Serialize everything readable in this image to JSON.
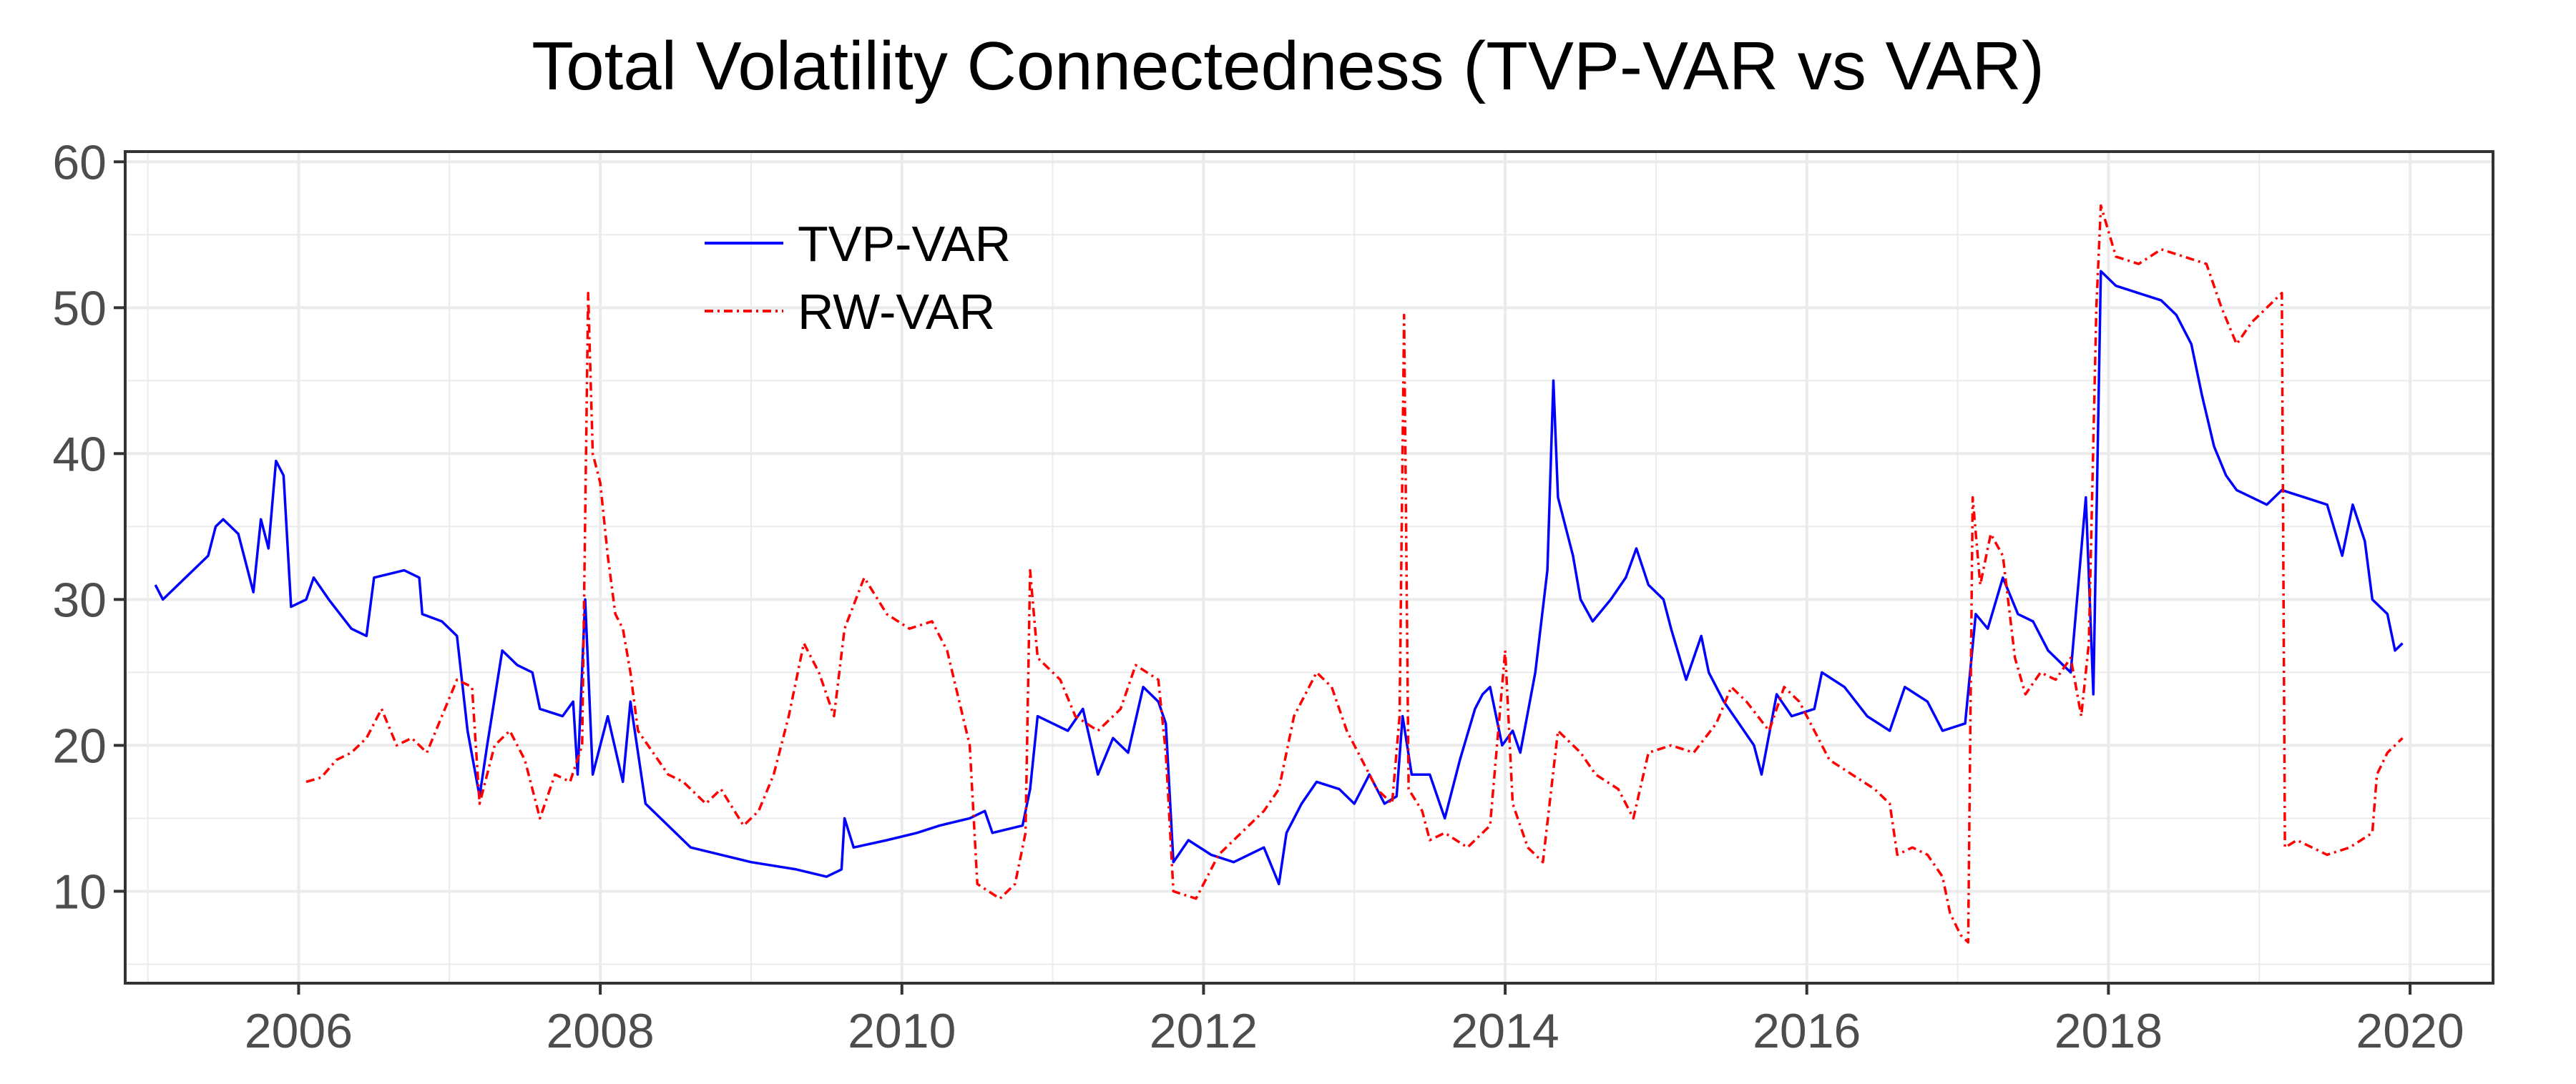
{
  "chart_data": {
    "type": "line",
    "title": "Total Volatility Connectedness (TVP-VAR vs VAR)",
    "xlabel": "",
    "ylabel": "",
    "xlim": [
      2004.85,
      2020.55
    ],
    "ylim": [
      3.7,
      60.7
    ],
    "x_ticks": [
      2006,
      2008,
      2010,
      2012,
      2014,
      2016,
      2018,
      2020
    ],
    "x_tick_labels": [
      "2006",
      "2008",
      "2010",
      "2012",
      "2014",
      "2016",
      "2018",
      "2020"
    ],
    "y_ticks": [
      10,
      20,
      30,
      40,
      50,
      60
    ],
    "y_tick_labels": [
      "10",
      "20",
      "30",
      "40",
      "50",
      "60"
    ],
    "grid": true,
    "legend_position": "top-left",
    "series": [
      {
        "name": "TVP-VAR",
        "color": "#0000ff",
        "style": "solid",
        "points": [
          [
            2005.05,
            31.0
          ],
          [
            2005.1,
            30.0
          ],
          [
            2005.2,
            31.0
          ],
          [
            2005.3,
            32.0
          ],
          [
            2005.4,
            33.0
          ],
          [
            2005.45,
            35.0
          ],
          [
            2005.5,
            35.5
          ],
          [
            2005.6,
            34.5
          ],
          [
            2005.65,
            32.5
          ],
          [
            2005.7,
            30.5
          ],
          [
            2005.75,
            35.5
          ],
          [
            2005.8,
            33.5
          ],
          [
            2005.85,
            39.5
          ],
          [
            2005.9,
            38.5
          ],
          [
            2005.95,
            29.5
          ],
          [
            2006.05,
            30.0
          ],
          [
            2006.1,
            31.5
          ],
          [
            2006.2,
            30.0
          ],
          [
            2006.35,
            28.0
          ],
          [
            2006.45,
            27.5
          ],
          [
            2006.5,
            31.5
          ],
          [
            2006.7,
            32.0
          ],
          [
            2006.8,
            31.5
          ],
          [
            2006.82,
            29.0
          ],
          [
            2006.95,
            28.5
          ],
          [
            2007.05,
            27.5
          ],
          [
            2007.12,
            21.0
          ],
          [
            2007.2,
            16.5
          ],
          [
            2007.25,
            20.0
          ],
          [
            2007.35,
            26.5
          ],
          [
            2007.45,
            25.5
          ],
          [
            2007.55,
            25.0
          ],
          [
            2007.6,
            22.5
          ],
          [
            2007.75,
            22.0
          ],
          [
            2007.82,
            23.0
          ],
          [
            2007.85,
            18.0
          ],
          [
            2007.9,
            30.0
          ],
          [
            2007.95,
            18.0
          ],
          [
            2008.05,
            22.0
          ],
          [
            2008.15,
            17.5
          ],
          [
            2008.2,
            23.0
          ],
          [
            2008.3,
            16.0
          ],
          [
            2008.45,
            14.5
          ],
          [
            2008.6,
            13.0
          ],
          [
            2008.8,
            12.5
          ],
          [
            2009.0,
            12.0
          ],
          [
            2009.3,
            11.5
          ],
          [
            2009.5,
            11.0
          ],
          [
            2009.6,
            11.5
          ],
          [
            2009.62,
            15.0
          ],
          [
            2009.68,
            13.0
          ],
          [
            2009.9,
            13.5
          ],
          [
            2010.1,
            14.0
          ],
          [
            2010.25,
            14.5
          ],
          [
            2010.45,
            15.0
          ],
          [
            2010.55,
            15.5
          ],
          [
            2010.6,
            14.0
          ],
          [
            2010.8,
            14.5
          ],
          [
            2010.85,
            17.0
          ],
          [
            2010.9,
            22.0
          ],
          [
            2011.1,
            21.0
          ],
          [
            2011.2,
            22.5
          ],
          [
            2011.3,
            18.0
          ],
          [
            2011.4,
            20.5
          ],
          [
            2011.5,
            19.5
          ],
          [
            2011.6,
            24.0
          ],
          [
            2011.7,
            23.0
          ],
          [
            2011.75,
            21.5
          ],
          [
            2011.8,
            12.0
          ],
          [
            2011.9,
            13.5
          ],
          [
            2012.05,
            12.5
          ],
          [
            2012.2,
            12.0
          ],
          [
            2012.4,
            13.0
          ],
          [
            2012.5,
            10.5
          ],
          [
            2012.55,
            14.0
          ],
          [
            2012.65,
            16.0
          ],
          [
            2012.75,
            17.5
          ],
          [
            2012.9,
            17.0
          ],
          [
            2013.0,
            16.0
          ],
          [
            2013.1,
            18.0
          ],
          [
            2013.2,
            16.0
          ],
          [
            2013.28,
            16.5
          ],
          [
            2013.32,
            22.0
          ],
          [
            2013.38,
            18.0
          ],
          [
            2013.5,
            18.0
          ],
          [
            2013.6,
            15.0
          ],
          [
            2013.7,
            19.0
          ],
          [
            2013.8,
            22.5
          ],
          [
            2013.85,
            23.5
          ],
          [
            2013.9,
            24.0
          ],
          [
            2013.98,
            20.0
          ],
          [
            2014.05,
            21.0
          ],
          [
            2014.1,
            19.5
          ],
          [
            2014.2,
            25.0
          ],
          [
            2014.28,
            32.0
          ],
          [
            2014.32,
            45.0
          ],
          [
            2014.35,
            37.0
          ],
          [
            2014.45,
            33.0
          ],
          [
            2014.5,
            30.0
          ],
          [
            2014.58,
            28.5
          ],
          [
            2014.7,
            30.0
          ],
          [
            2014.8,
            31.5
          ],
          [
            2014.87,
            33.5
          ],
          [
            2014.95,
            31.0
          ],
          [
            2015.05,
            30.0
          ],
          [
            2015.1,
            28.0
          ],
          [
            2015.2,
            24.5
          ],
          [
            2015.3,
            27.5
          ],
          [
            2015.35,
            25.0
          ],
          [
            2015.45,
            23.0
          ],
          [
            2015.55,
            21.5
          ],
          [
            2015.65,
            20.0
          ],
          [
            2015.7,
            18.0
          ],
          [
            2015.8,
            23.5
          ],
          [
            2015.9,
            22.0
          ],
          [
            2016.05,
            22.5
          ],
          [
            2016.1,
            25.0
          ],
          [
            2016.25,
            24.0
          ],
          [
            2016.4,
            22.0
          ],
          [
            2016.55,
            21.0
          ],
          [
            2016.65,
            24.0
          ],
          [
            2016.8,
            23.0
          ],
          [
            2016.9,
            21.0
          ],
          [
            2017.05,
            21.5
          ],
          [
            2017.12,
            29.0
          ],
          [
            2017.2,
            28.0
          ],
          [
            2017.3,
            31.5
          ],
          [
            2017.4,
            29.0
          ],
          [
            2017.5,
            28.5
          ],
          [
            2017.6,
            26.5
          ],
          [
            2017.7,
            25.5
          ],
          [
            2017.75,
            25.0
          ],
          [
            2017.85,
            37.0
          ],
          [
            2017.9,
            23.5
          ],
          [
            2017.95,
            52.5
          ],
          [
            2018.05,
            51.5
          ],
          [
            2018.2,
            51.0
          ],
          [
            2018.35,
            50.5
          ],
          [
            2018.45,
            49.5
          ],
          [
            2018.55,
            47.5
          ],
          [
            2018.62,
            44.0
          ],
          [
            2018.7,
            40.5
          ],
          [
            2018.78,
            38.5
          ],
          [
            2018.85,
            37.5
          ],
          [
            2018.95,
            37.0
          ],
          [
            2019.05,
            36.5
          ],
          [
            2019.15,
            37.5
          ],
          [
            2019.3,
            37.0
          ],
          [
            2019.45,
            36.5
          ],
          [
            2019.55,
            33.0
          ],
          [
            2019.62,
            36.5
          ],
          [
            2019.7,
            34.0
          ],
          [
            2019.75,
            30.0
          ],
          [
            2019.85,
            29.0
          ],
          [
            2019.9,
            26.5
          ],
          [
            2019.95,
            27.0
          ]
        ]
      },
      {
        "name": "RW-VAR",
        "color": "#ff0000",
        "style": "dashed",
        "points": [
          [
            2006.05,
            17.5
          ],
          [
            2006.15,
            17.8
          ],
          [
            2006.25,
            19.0
          ],
          [
            2006.35,
            19.5
          ],
          [
            2006.45,
            20.5
          ],
          [
            2006.55,
            22.5
          ],
          [
            2006.65,
            20.0
          ],
          [
            2006.75,
            20.5
          ],
          [
            2006.85,
            19.5
          ],
          [
            2006.95,
            22.0
          ],
          [
            2007.05,
            24.5
          ],
          [
            2007.15,
            24.0
          ],
          [
            2007.2,
            16.0
          ],
          [
            2007.3,
            20.0
          ],
          [
            2007.4,
            21.0
          ],
          [
            2007.5,
            19.0
          ],
          [
            2007.6,
            15.0
          ],
          [
            2007.7,
            18.0
          ],
          [
            2007.8,
            17.5
          ],
          [
            2007.88,
            20.0
          ],
          [
            2007.92,
            51.0
          ],
          [
            2007.95,
            40.0
          ],
          [
            2008.0,
            38.0
          ],
          [
            2008.05,
            33.0
          ],
          [
            2008.1,
            29.0
          ],
          [
            2008.15,
            28.0
          ],
          [
            2008.2,
            25.0
          ],
          [
            2008.25,
            21.0
          ],
          [
            2008.35,
            19.5
          ],
          [
            2008.45,
            18.0
          ],
          [
            2008.55,
            17.5
          ],
          [
            2008.7,
            16.0
          ],
          [
            2008.8,
            17.0
          ],
          [
            2008.95,
            14.5
          ],
          [
            2009.05,
            15.5
          ],
          [
            2009.15,
            18.0
          ],
          [
            2009.25,
            22.0
          ],
          [
            2009.35,
            27.0
          ],
          [
            2009.45,
            25.0
          ],
          [
            2009.55,
            22.0
          ],
          [
            2009.62,
            28.0
          ],
          [
            2009.75,
            31.5
          ],
          [
            2009.9,
            29.0
          ],
          [
            2010.05,
            28.0
          ],
          [
            2010.2,
            28.5
          ],
          [
            2010.3,
            26.5
          ],
          [
            2010.45,
            20.0
          ],
          [
            2010.5,
            10.5
          ],
          [
            2010.65,
            9.5
          ],
          [
            2010.75,
            10.5
          ],
          [
            2010.82,
            14.0
          ],
          [
            2010.85,
            32.0
          ],
          [
            2010.9,
            26.0
          ],
          [
            2011.05,
            24.5
          ],
          [
            2011.15,
            22.0
          ],
          [
            2011.3,
            21.0
          ],
          [
            2011.45,
            22.5
          ],
          [
            2011.55,
            25.5
          ],
          [
            2011.7,
            24.5
          ],
          [
            2011.75,
            19.5
          ],
          [
            2011.8,
            10.0
          ],
          [
            2011.95,
            9.5
          ],
          [
            2012.1,
            12.5
          ],
          [
            2012.25,
            14.0
          ],
          [
            2012.4,
            15.5
          ],
          [
            2012.5,
            17.0
          ],
          [
            2012.6,
            22.0
          ],
          [
            2012.75,
            25.0
          ],
          [
            2012.85,
            24.0
          ],
          [
            2012.95,
            21.0
          ],
          [
            2013.05,
            19.0
          ],
          [
            2013.15,
            17.0
          ],
          [
            2013.25,
            16.0
          ],
          [
            2013.3,
            22.0
          ],
          [
            2013.33,
            49.5
          ],
          [
            2013.36,
            17.0
          ],
          [
            2013.45,
            15.5
          ],
          [
            2013.5,
            13.5
          ],
          [
            2013.6,
            14.0
          ],
          [
            2013.75,
            13.0
          ],
          [
            2013.9,
            14.5
          ],
          [
            2014.0,
            26.5
          ],
          [
            2014.05,
            16.0
          ],
          [
            2014.15,
            13.0
          ],
          [
            2014.25,
            12.0
          ],
          [
            2014.35,
            21.0
          ],
          [
            2014.5,
            19.5
          ],
          [
            2014.6,
            18.0
          ],
          [
            2014.75,
            17.0
          ],
          [
            2014.85,
            15.0
          ],
          [
            2014.95,
            19.5
          ],
          [
            2015.1,
            20.0
          ],
          [
            2015.25,
            19.5
          ],
          [
            2015.4,
            21.5
          ],
          [
            2015.5,
            24.0
          ],
          [
            2015.6,
            23.0
          ],
          [
            2015.75,
            21.0
          ],
          [
            2015.85,
            24.0
          ],
          [
            2015.95,
            23.0
          ],
          [
            2016.05,
            21.0
          ],
          [
            2016.15,
            19.0
          ],
          [
            2016.3,
            18.0
          ],
          [
            2016.45,
            17.0
          ],
          [
            2016.55,
            16.0
          ],
          [
            2016.6,
            12.5
          ],
          [
            2016.7,
            13.0
          ],
          [
            2016.8,
            12.5
          ],
          [
            2016.9,
            11.0
          ],
          [
            2016.95,
            8.5
          ],
          [
            2017.02,
            7.0
          ],
          [
            2017.07,
            6.5
          ],
          [
            2017.1,
            37.0
          ],
          [
            2017.15,
            31.0
          ],
          [
            2017.22,
            34.5
          ],
          [
            2017.3,
            33.0
          ],
          [
            2017.38,
            26.0
          ],
          [
            2017.45,
            23.5
          ],
          [
            2017.55,
            25.0
          ],
          [
            2017.65,
            24.5
          ],
          [
            2017.75,
            26.0
          ],
          [
            2017.82,
            22.0
          ],
          [
            2017.87,
            27.0
          ],
          [
            2017.92,
            50.0
          ],
          [
            2017.95,
            57.0
          ],
          [
            2018.05,
            53.5
          ],
          [
            2018.2,
            53.0
          ],
          [
            2018.35,
            54.0
          ],
          [
            2018.5,
            53.5
          ],
          [
            2018.65,
            53.0
          ],
          [
            2018.75,
            50.0
          ],
          [
            2018.85,
            47.5
          ],
          [
            2018.95,
            49.0
          ],
          [
            2019.05,
            50.0
          ],
          [
            2019.15,
            51.0
          ],
          [
            2019.17,
            13.0
          ],
          [
            2019.25,
            13.5
          ],
          [
            2019.35,
            13.0
          ],
          [
            2019.45,
            12.5
          ],
          [
            2019.6,
            13.0
          ],
          [
            2019.75,
            14.0
          ],
          [
            2019.78,
            18.0
          ],
          [
            2019.85,
            19.5
          ],
          [
            2019.95,
            20.5
          ]
        ]
      }
    ]
  }
}
